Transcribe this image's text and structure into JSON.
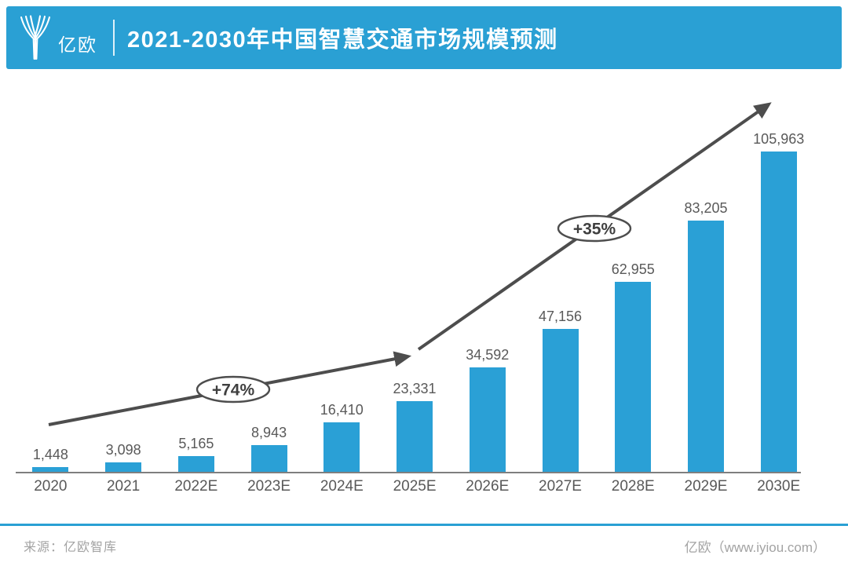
{
  "header": {
    "logo_text": "亿欧",
    "title": "2021-2030年中国智慧交通市场规模预测"
  },
  "chart_data": {
    "type": "bar",
    "title": "2021-2030年中国智慧交通市场规模预测",
    "categories": [
      "2020",
      "2021",
      "2022E",
      "2023E",
      "2024E",
      "2025E",
      "2026E",
      "2027E",
      "2028E",
      "2029E",
      "2030E"
    ],
    "values": [
      1448,
      3098,
      5165,
      8943,
      16410,
      23331,
      34592,
      47156,
      62955,
      83205,
      105963
    ],
    "value_labels": [
      "1,448",
      "3,098",
      "5,165",
      "8,943",
      "16,410",
      "23,331",
      "34,592",
      "47,156",
      "62,955",
      "83,205",
      "105,963"
    ],
    "annotations": [
      {
        "label": "+74%",
        "span": "2020 to 2025E"
      },
      {
        "label": "+35%",
        "span": "2025E to 2030E"
      }
    ],
    "xlabel": "",
    "ylabel": "",
    "ylim": [
      0,
      110000
    ],
    "grid": false,
    "legend": false,
    "bar_color": "#2AA0D6",
    "trend_arrows": 2
  },
  "footer": {
    "source": "来源：亿欧智库",
    "credit": "亿欧（www.iyiou.com）"
  },
  "colors": {
    "banner_blue": "#2AA0D4",
    "bar_blue": "#2AA0D6",
    "arrow_gray": "#4D4D4D",
    "label_gray": "#595959",
    "footer_gray": "#A3A3A3",
    "axis_gray": "#7F7F7F"
  }
}
